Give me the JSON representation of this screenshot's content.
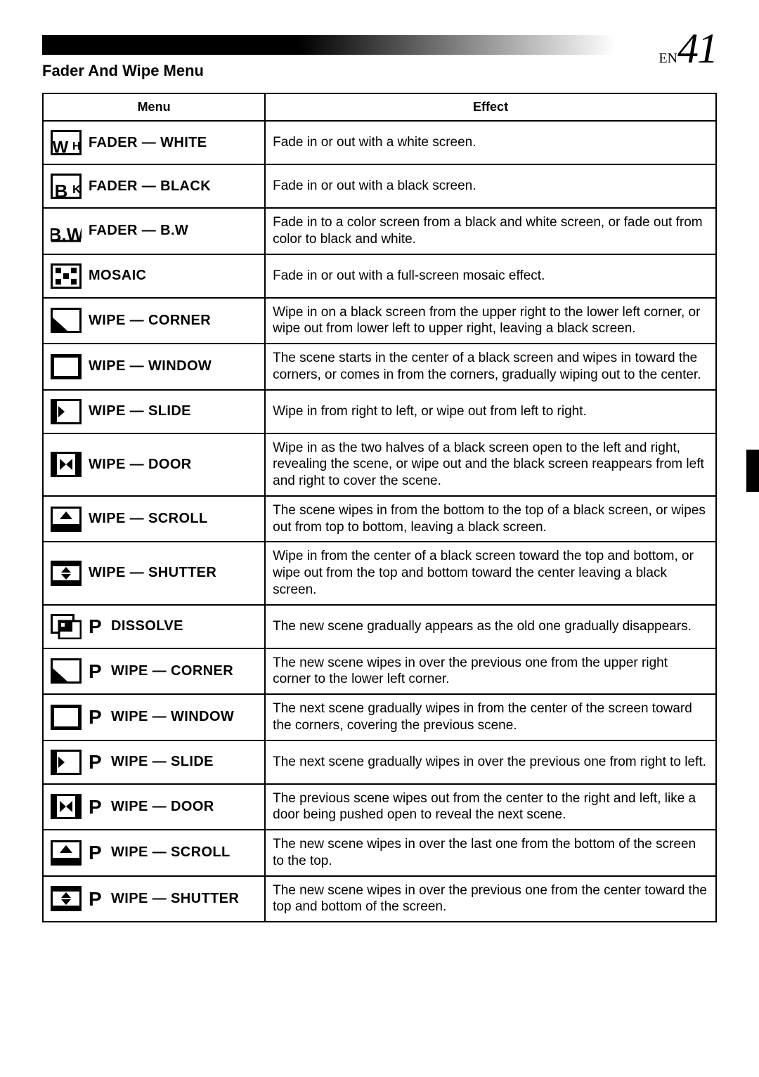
{
  "page_number_prefix": "EN",
  "page_number": "41",
  "section_title": "Fader And Wipe Menu",
  "table": {
    "headers": {
      "menu": "Menu",
      "effect": "Effect"
    },
    "rows": [
      {
        "icon": "wh",
        "p": false,
        "label": "FADER — WHITE",
        "effect": "Fade in or out with a white screen."
      },
      {
        "icon": "bk",
        "p": false,
        "label": "FADER — BLACK",
        "effect": "Fade in or out with a black screen."
      },
      {
        "icon": "bw",
        "p": false,
        "label": "FADER — B.W",
        "effect": "Fade in to a color screen from a black and white screen, or fade out from color to black and white."
      },
      {
        "icon": "mosaic",
        "p": false,
        "label": "MOSAIC",
        "effect": "Fade in or out with a full-screen mosaic effect."
      },
      {
        "icon": "corner",
        "p": false,
        "label": "WIPE — CORNER",
        "effect": "Wipe in on a black screen from the upper right to the lower left corner, or wipe out from lower left to upper right, leaving a black screen."
      },
      {
        "icon": "window",
        "p": false,
        "label": "WIPE — WINDOW",
        "effect": "The scene starts in the center of a black screen and wipes in toward the corners, or comes in from the corners, gradually wiping out to the center."
      },
      {
        "icon": "slide",
        "p": false,
        "label": "WIPE — SLIDE",
        "effect": "Wipe in from right to left, or wipe out from left to right."
      },
      {
        "icon": "door",
        "p": false,
        "label": "WIPE — DOOR",
        "effect": "Wipe in as the two halves of a black screen open to the left and right, revealing the scene, or wipe out and the black screen reappears from left and right to cover the scene."
      },
      {
        "icon": "scroll",
        "p": false,
        "label": "WIPE — SCROLL",
        "effect": "The scene wipes in from the bottom to the top of a black screen, or wipes out from top to bottom, leaving a black screen."
      },
      {
        "icon": "shutter",
        "p": false,
        "label": "WIPE — SHUTTER",
        "effect": "Wipe in from the center of a black screen toward the top and bottom, or wipe out from the top and bottom toward the center leaving a black screen."
      },
      {
        "icon": "dissolve",
        "p": true,
        "label": "DISSOLVE",
        "effect": "The new scene gradually appears as the old one gradually disappears."
      },
      {
        "icon": "corner",
        "p": true,
        "label": "WIPE — CORNER",
        "effect": "The new scene wipes in over the previous one from the upper right corner to the lower left corner."
      },
      {
        "icon": "window",
        "p": true,
        "label": "WIPE — WINDOW",
        "effect": "The next scene gradually wipes in from the center of the screen toward the corners, covering the previous scene."
      },
      {
        "icon": "slide",
        "p": true,
        "label": "WIPE — SLIDE",
        "effect": "The next scene gradually wipes in over the previous one from right to left."
      },
      {
        "icon": "door",
        "p": true,
        "label": "WIPE — DOOR",
        "effect": "The previous scene wipes out from the center to the right and left, like a door being pushed open to reveal the next scene."
      },
      {
        "icon": "scroll",
        "p": true,
        "label": "WIPE — SCROLL",
        "effect": "The new scene wipes in over the last one from the bottom of the screen to the top."
      },
      {
        "icon": "shutter",
        "p": true,
        "label": "WIPE — SHUTTER",
        "effect": "The new scene wipes in over the previous one from the center toward the top and bottom of the screen."
      }
    ]
  },
  "p_label": "P"
}
